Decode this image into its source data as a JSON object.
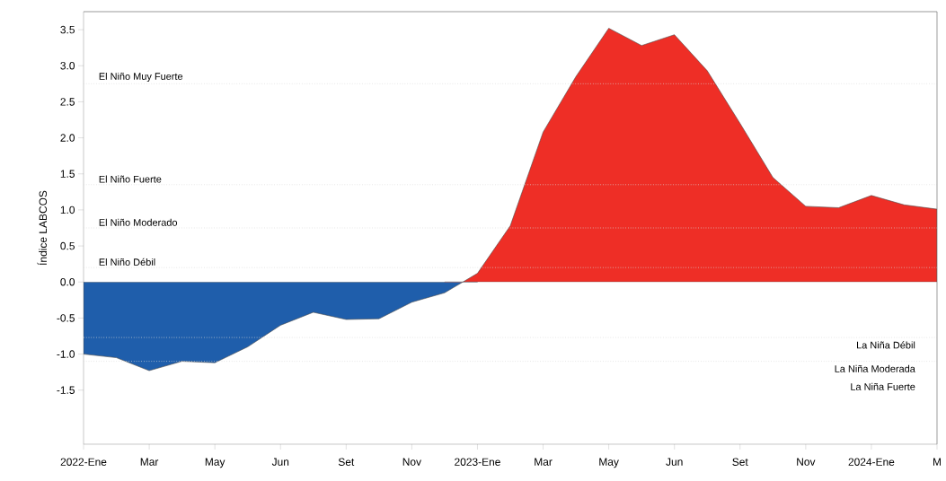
{
  "chart_data": {
    "type": "area",
    "ylabel": "Índice LABCOS",
    "categories": [
      "2022-Ene",
      null,
      "Mar",
      null,
      "May",
      null,
      "Jun",
      null,
      "Set",
      null,
      "Nov",
      null,
      "2023-Ene",
      null,
      "Mar",
      null,
      "May",
      null,
      "Jun",
      null,
      "Set",
      null,
      "Nov",
      null,
      "2024-Ene",
      null,
      "M"
    ],
    "ylim": [
      -2.25,
      3.75
    ],
    "yticks": [
      -1.5,
      {
        "value": -1,
        "label": "-1.0"
      },
      -0.5,
      {
        "value": 0,
        "label": "0.0"
      },
      0.5,
      {
        "value": 1,
        "label": "1.0"
      },
      1.5,
      {
        "value": 2,
        "label": "2.0"
      },
      2.5,
      {
        "value": 3,
        "label": "3.0"
      },
      3.5
    ],
    "series": [
      {
        "color": "#1f5eab",
        "values": [
          -1.0,
          -1.05,
          -1.23,
          -1.1,
          -1.12,
          -0.9,
          -0.6,
          -0.42,
          -0.52,
          -0.51,
          -0.28,
          -0.15,
          0.12,
          null,
          null,
          null,
          null,
          null,
          null,
          null,
          null,
          null,
          null,
          null,
          null,
          null,
          null
        ]
      },
      {
        "color": "#ee2e26",
        "values": [
          null,
          null,
          null,
          null,
          null,
          null,
          null,
          null,
          null,
          null,
          null,
          -0.15,
          0.12,
          0.78,
          2.08,
          2.85,
          3.52,
          3.28,
          3.43,
          2.93,
          2.2,
          1.45,
          1.05,
          1.03,
          1.2,
          1.07,
          1.01
        ]
      }
    ],
    "ref_lines": [
      {
        "axis": "y",
        "value": 2.75,
        "label": "El Niño Muy Fuerte",
        "color": "#d9d9d9",
        "line_style": "dotted"
      },
      {
        "axis": "y",
        "value": 1.35,
        "label": "El Niño Fuerte",
        "color": "#d9d9d9",
        "line_style": "dotted"
      },
      {
        "axis": "y",
        "value": 0.75,
        "label": "El Niño Moderado",
        "color": "#d9d9d9",
        "line_style": "dotted"
      },
      {
        "axis": "y",
        "value": 0.2,
        "label": "El Niño Débil",
        "color": "#d9d9d9",
        "line_style": "dotted"
      },
      {
        "axis": "y",
        "value": -0.77,
        "label": "La Niña Débil",
        "color": "#d9d9d9",
        "line_style": "dotted"
      },
      {
        "axis": "y",
        "value": -1.1,
        "label": "La Niña Moderada",
        "color": "#d9d9d9",
        "line_style": "dotted"
      }
    ],
    "annotations": [
      "La Niña Fuerte"
    ],
    "grid": false,
    "marker": "none",
    "line_style": "solid"
  }
}
